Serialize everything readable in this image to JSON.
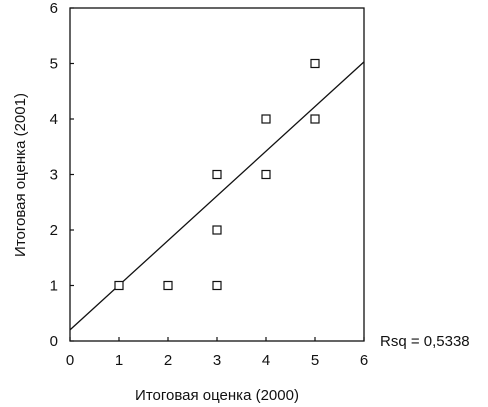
{
  "chart_data": {
    "type": "scatter",
    "xlabel": "Итоговая оценка (2000)",
    "ylabel": "Итоговая оценка (2001)",
    "xlim": [
      0,
      6
    ],
    "ylim": [
      0,
      6
    ],
    "x_ticks": [
      "0",
      "1",
      "2",
      "3",
      "4",
      "5",
      "6"
    ],
    "y_ticks": [
      "0",
      "1",
      "2",
      "3",
      "4",
      "5",
      "6"
    ],
    "grid": false,
    "points": [
      {
        "x": 1,
        "y": 1
      },
      {
        "x": 2,
        "y": 1
      },
      {
        "x": 3,
        "y": 1
      },
      {
        "x": 3,
        "y": 2
      },
      {
        "x": 3,
        "y": 3
      },
      {
        "x": 4,
        "y": 3
      },
      {
        "x": 4,
        "y": 4
      },
      {
        "x": 5,
        "y": 4
      },
      {
        "x": 5,
        "y": 5
      }
    ],
    "fit_line": {
      "x": [
        0,
        6
      ],
      "y": [
        0.2,
        5.03
      ]
    },
    "annotation": "Rsq = 0,5338",
    "marker": "open-square",
    "colors": {
      "ink": "#111111",
      "background": "#ffffff"
    }
  }
}
